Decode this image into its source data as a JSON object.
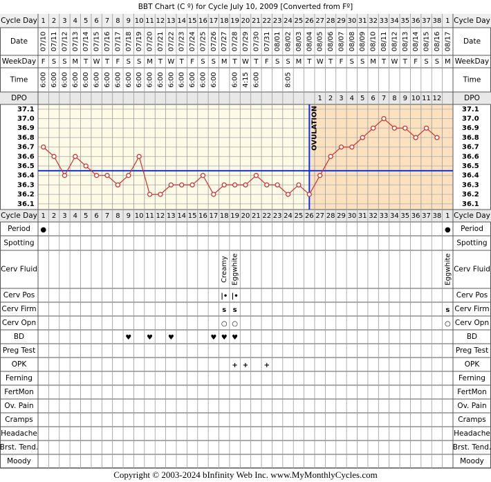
{
  "title": "BBT Chart (C º) for Cycle July 10, 2009  [Converted from Fº]",
  "footer": "Copyright © 2003-2024 bInfinity Web Inc.     www.MyMonthlyCycles.com",
  "upper_row_labels": [
    "Cycle Day",
    "Date",
    "WeekDay",
    "Time",
    "DPO"
  ],
  "chart_data": {
    "type": "line",
    "categories": [
      1,
      2,
      3,
      4,
      5,
      6,
      7,
      8,
      9,
      10,
      11,
      12,
      13,
      14,
      15,
      16,
      17,
      18,
      19,
      20,
      21,
      22,
      23,
      24,
      25,
      26,
      27,
      28,
      29,
      30,
      31,
      32,
      33,
      34,
      35,
      36,
      37,
      38,
      1
    ],
    "dates": [
      "07/10",
      "07/11",
      "07/12",
      "07/13",
      "07/14",
      "07/15",
      "07/16",
      "07/17",
      "07/18",
      "07/19",
      "07/20",
      "07/21",
      "07/22",
      "07/23",
      "07/24",
      "07/25",
      "07/26",
      "07/27",
      "07/28",
      "07/29",
      "07/30",
      "07/31",
      "08/01",
      "08/02",
      "08/03",
      "08/04",
      "08/05",
      "08/06",
      "08/07",
      "08/08",
      "08/09",
      "08/10",
      "08/11",
      "08/12",
      "08/13",
      "08/14",
      "08/15",
      "08/16",
      "08/17"
    ],
    "weekdays": [
      "F",
      "S",
      "S",
      "M",
      "T",
      "W",
      "T",
      "F",
      "S",
      "S",
      "M",
      "T",
      "W",
      "T",
      "F",
      "S",
      "S",
      "M",
      "T",
      "W",
      "T",
      "F",
      "S",
      "S",
      "M",
      "T",
      "W",
      "T",
      "F",
      "S",
      "S",
      "M",
      "T",
      "W",
      "T",
      "F",
      "S",
      "S",
      "M"
    ],
    "times": [
      "6:00",
      "6:00",
      "6:00",
      "6:00",
      "6:00",
      "6:00",
      "6:00",
      "6:00",
      "6:00",
      "6:00",
      "6:00",
      "6:00",
      "6:00",
      "6:00",
      "6:00",
      "6:00",
      "6:00",
      null,
      "6:00",
      "4:15",
      "6:00",
      null,
      null,
      "8:05",
      null,
      null,
      null,
      null,
      null,
      null,
      null,
      null,
      null,
      null,
      null,
      null,
      null,
      null,
      null
    ],
    "dpo": [
      null,
      null,
      null,
      null,
      null,
      null,
      null,
      null,
      null,
      null,
      null,
      null,
      null,
      null,
      null,
      null,
      null,
      null,
      null,
      null,
      null,
      null,
      null,
      null,
      null,
      null,
      1,
      2,
      3,
      4,
      5,
      6,
      7,
      8,
      9,
      10,
      11,
      12,
      null
    ],
    "values": [
      36.7,
      36.6,
      36.4,
      36.6,
      36.5,
      36.4,
      36.4,
      36.3,
      36.4,
      36.6,
      36.2,
      36.2,
      36.3,
      36.3,
      36.3,
      36.4,
      36.2,
      36.3,
      36.3,
      36.3,
      36.4,
      36.3,
      36.3,
      36.2,
      36.3,
      36.2,
      36.4,
      36.6,
      36.7,
      36.7,
      36.8,
      36.9,
      37.0,
      36.9,
      36.9,
      36.8,
      36.9,
      36.8,
      null
    ],
    "color": "#d03030",
    "ylim": [
      36.04,
      37.15
    ],
    "yticks": [
      37.1,
      37.0,
      36.9,
      36.8,
      36.7,
      36.6,
      36.5,
      36.4,
      36.3,
      36.2,
      36.1
    ],
    "ytick_labels": [
      "37.1",
      "37.0",
      "36.9",
      "36.8",
      "36.7",
      "36.6",
      "36.5",
      "36.4",
      "36.3",
      "36.2",
      "36.1"
    ],
    "coverline": 36.45,
    "ovulation": {
      "label": "OVULATION",
      "day": 26
    },
    "grid": true
  },
  "observations": [
    {
      "label": "Cycle Day"
    },
    {
      "label": "Period",
      "color": "#e040e0",
      "entries": [
        "●",
        null,
        null,
        null,
        null,
        null,
        null,
        null,
        null,
        null,
        null,
        null,
        null,
        null,
        null,
        null,
        null,
        null,
        null,
        null,
        null,
        null,
        null,
        null,
        null,
        null,
        null,
        null,
        null,
        null,
        null,
        null,
        null,
        null,
        null,
        null,
        null,
        null,
        "●"
      ]
    },
    {
      "label": "Spotting"
    },
    {
      "label": "Cerv Fluid",
      "color": "#000000",
      "rotated": true,
      "entries": [
        null,
        null,
        null,
        null,
        null,
        null,
        null,
        null,
        null,
        null,
        null,
        null,
        null,
        null,
        null,
        null,
        null,
        "Creamy",
        "Eggwhite",
        null,
        null,
        null,
        null,
        null,
        null,
        null,
        null,
        null,
        null,
        null,
        null,
        null,
        null,
        null,
        null,
        null,
        null,
        null,
        "Eggwhite"
      ]
    },
    {
      "label": "Cerv Pos",
      "color": "#8a4fb0",
      "entries": [
        null,
        null,
        null,
        null,
        null,
        null,
        null,
        null,
        null,
        null,
        null,
        null,
        null,
        null,
        null,
        null,
        null,
        "|•",
        "|•",
        null,
        null,
        null,
        null,
        null,
        null,
        null,
        null,
        null,
        null,
        null,
        null,
        null,
        null,
        null,
        null,
        null,
        null,
        null,
        null
      ]
    },
    {
      "label": "Cerv Firm",
      "color": "#8a4fb0",
      "entries": [
        null,
        null,
        null,
        null,
        null,
        null,
        null,
        null,
        null,
        null,
        null,
        null,
        null,
        null,
        null,
        null,
        null,
        "s",
        "s",
        null,
        null,
        null,
        null,
        null,
        null,
        null,
        null,
        null,
        null,
        null,
        null,
        null,
        null,
        null,
        null,
        null,
        null,
        null,
        "s"
      ]
    },
    {
      "label": "Cerv Opn",
      "color": "#cc5555",
      "entries": [
        null,
        null,
        null,
        null,
        null,
        null,
        null,
        null,
        null,
        null,
        null,
        null,
        null,
        null,
        null,
        null,
        null,
        "○",
        "○",
        null,
        null,
        null,
        null,
        null,
        null,
        null,
        null,
        null,
        null,
        null,
        null,
        null,
        null,
        null,
        null,
        null,
        null,
        null,
        "○"
      ]
    },
    {
      "label": "BD",
      "color": "#e0307a",
      "entries": [
        null,
        null,
        null,
        null,
        null,
        null,
        null,
        null,
        "♥",
        null,
        "♥",
        null,
        "♥",
        null,
        null,
        null,
        "♥",
        "♥",
        "♥",
        null,
        null,
        null,
        null,
        null,
        null,
        null,
        null,
        null,
        null,
        null,
        null,
        null,
        null,
        null,
        null,
        null,
        null,
        null,
        null
      ]
    },
    {
      "label": "Preg Test"
    },
    {
      "label": "OPK",
      "color": "#8040d0",
      "entries": [
        null,
        null,
        null,
        null,
        null,
        null,
        null,
        null,
        null,
        null,
        null,
        null,
        null,
        null,
        null,
        null,
        null,
        null,
        "+",
        "+",
        null,
        "+",
        null,
        null,
        null,
        null,
        null,
        null,
        null,
        null,
        null,
        null,
        null,
        null,
        null,
        null,
        null,
        null,
        null
      ]
    },
    {
      "label": "Ferning"
    },
    {
      "label": "FertMon"
    },
    {
      "label": "Ov. Pain"
    },
    {
      "label": "Cramps"
    },
    {
      "label": "Headache"
    },
    {
      "label": "Brst. Tend."
    },
    {
      "label": "Moody"
    }
  ]
}
